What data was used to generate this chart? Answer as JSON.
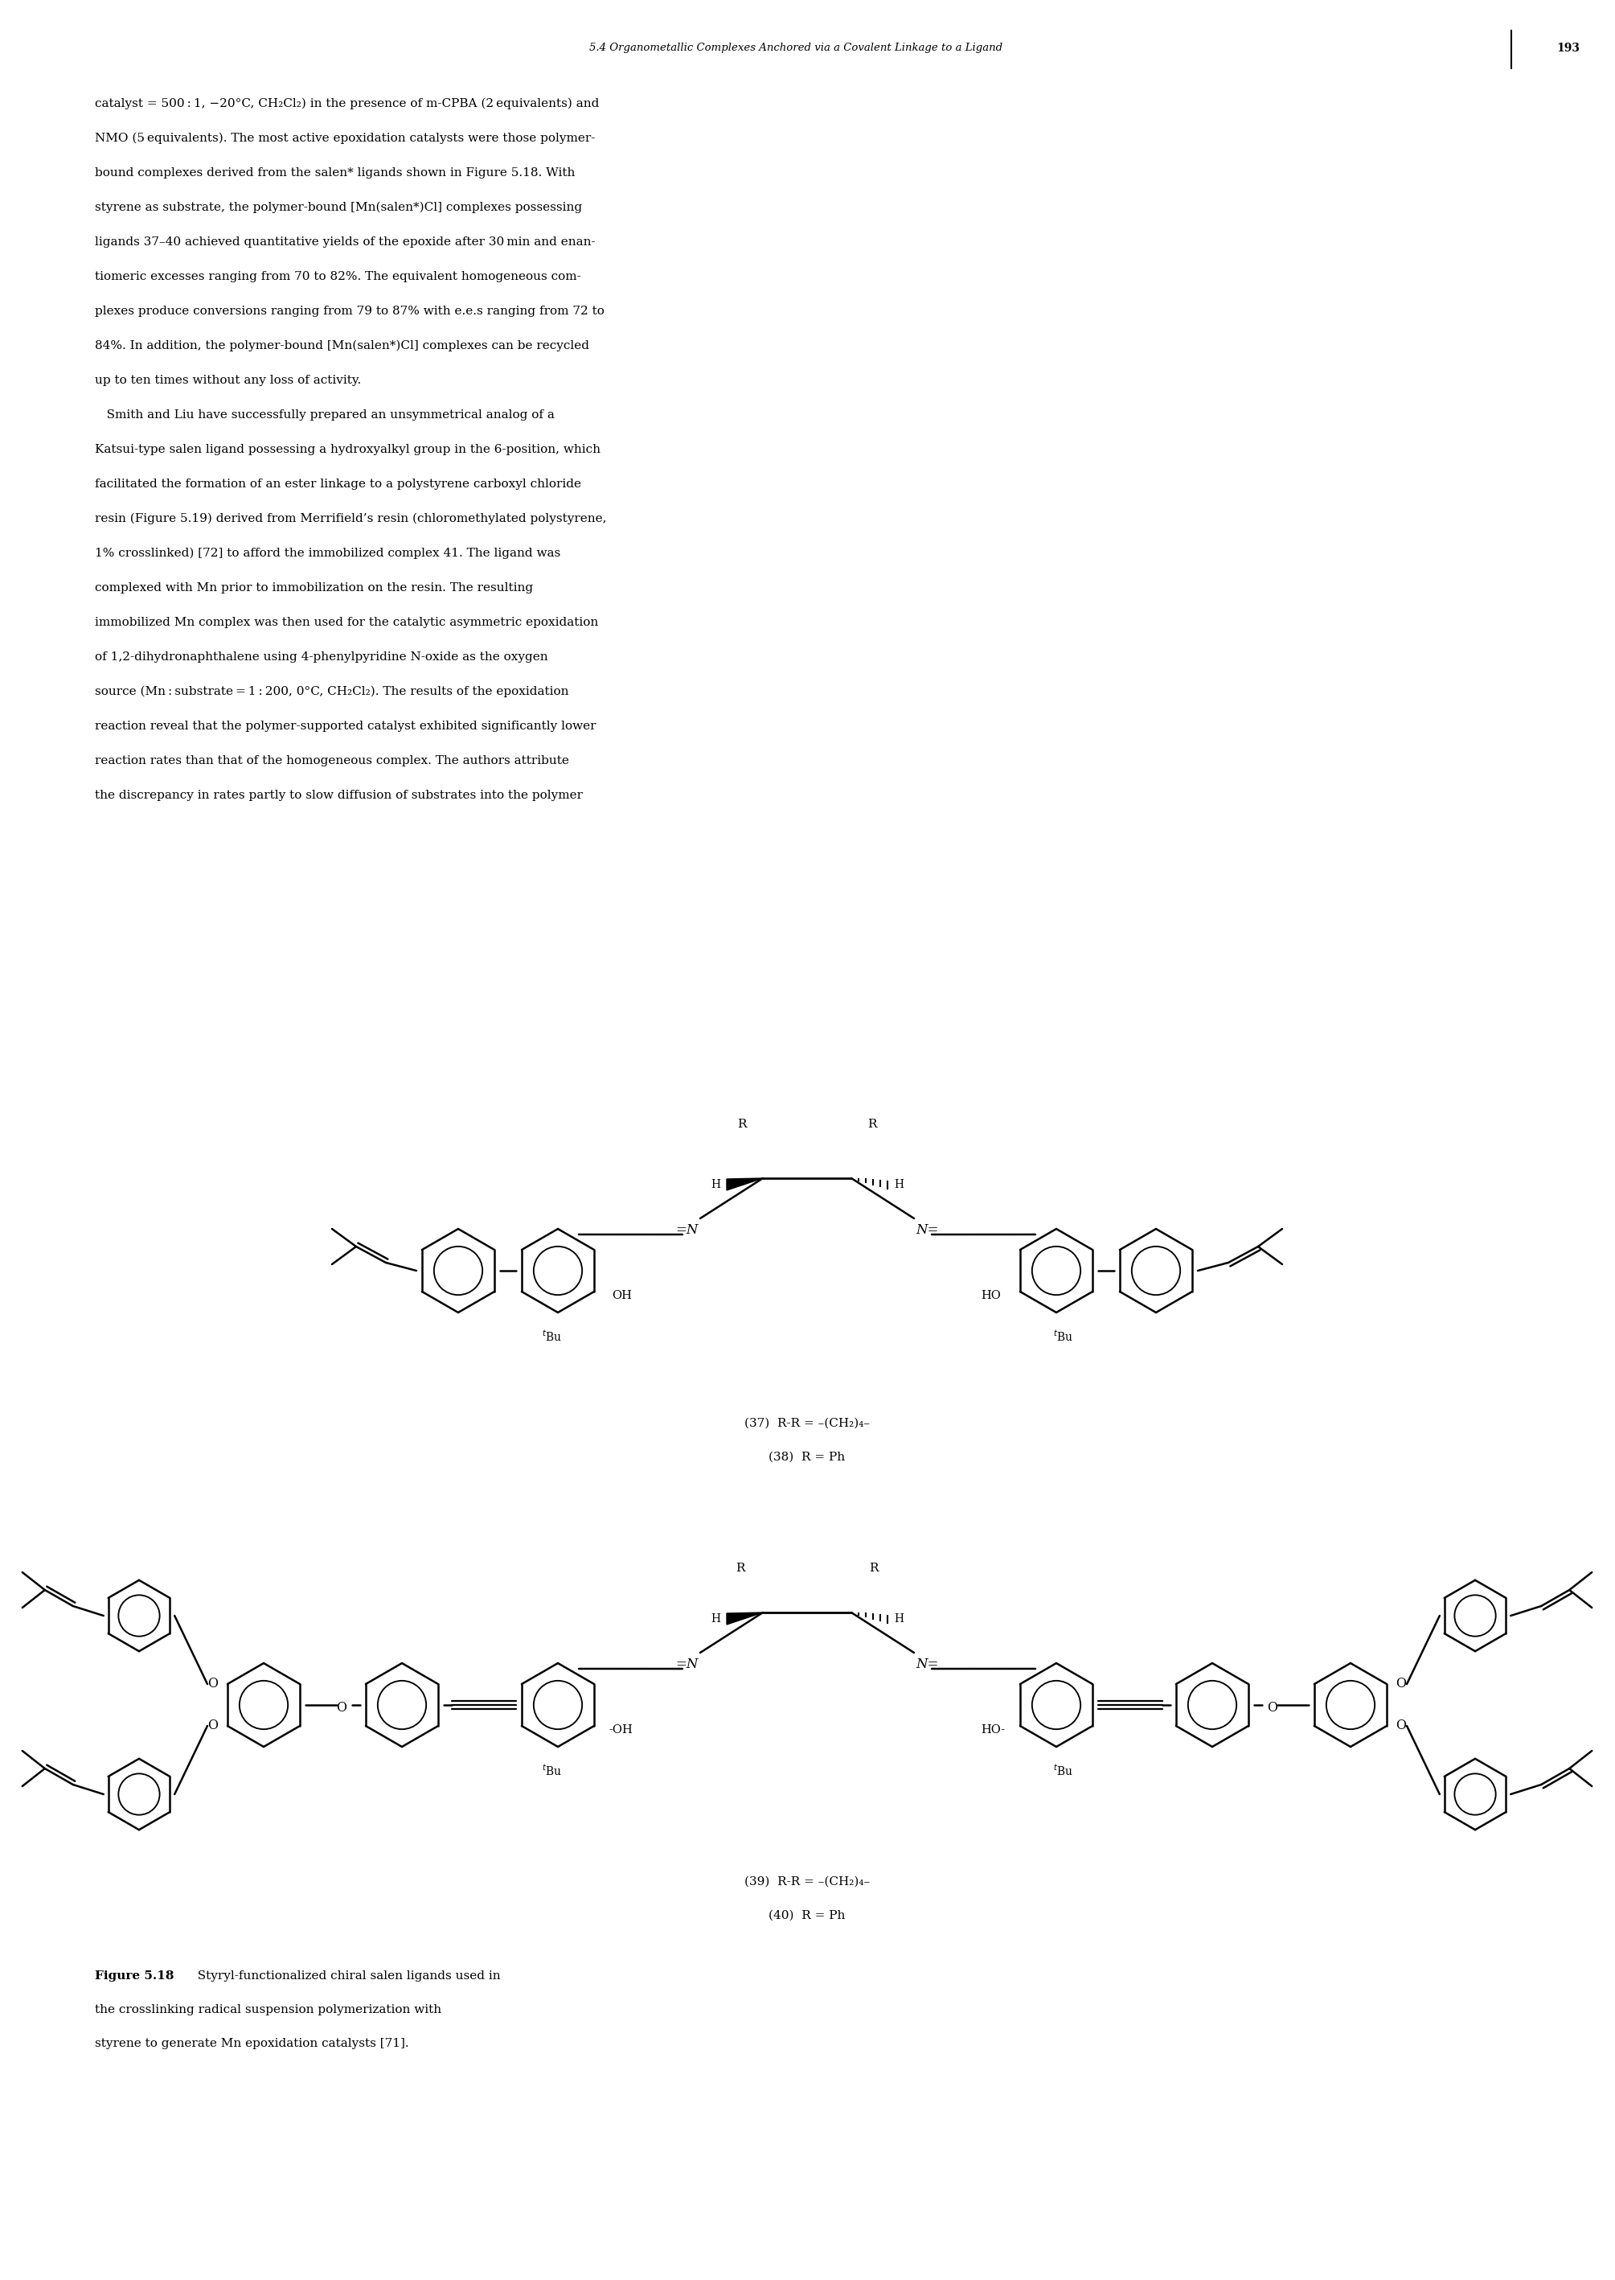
{
  "page_header": "5.4 Organometallic Complexes Anchored via a Covalent Linkage to a Ligand",
  "page_number": "193",
  "body_text_line1": "catalyst = 500 : 1, −20°C, CH",
  "body_text_line1b": "2",
  "body_text_line1c": "Cl",
  "body_text_line1d": "2",
  "body_text_line1e": ") in the presence of ",
  "body_lines": [
    "catalyst = 500 : 1, −20°C, CH₂Cl₂) in the presence of m-CPBA (2 equivalents) and",
    "NMO (5 equivalents). The most active epoxidation catalysts were those polymer-",
    "bound complexes derived from the salen* ligands shown in Figure 5.18. With",
    "styrene as substrate, the polymer-bound [Mn(salen*)Cl] complexes possessing",
    "ligands 37–40 achieved quantitative yields of the epoxide after 30 min and enan-",
    "tiomeric excesses ranging from 70 to 82%. The equivalent homogeneous com-",
    "plexes produce conversions ranging from 79 to 87% with e.e.s ranging from 72 to",
    "84%. In addition, the polymer-bound [Mn(salen*)Cl] complexes can be recycled",
    "up to ten times without any loss of activity.",
    "   Smith and Liu have successfully prepared an unsymmetrical analog of a",
    "Katsui-type salen ligand possessing a hydroxyalkyl group in the 6-position, which",
    "facilitated the formation of an ester linkage to a polystyrene carboxyl chloride",
    "resin (Figure 5.19) derived from Merrifield’s resin (chloromethylated polystyrene,",
    "1% crosslinked) [72] to afford the immobilized complex 41. The ligand was",
    "complexed with Mn prior to immobilization on the resin. The resulting",
    "immobilized Mn complex was then used for the catalytic asymmetric epoxidation",
    "of 1,2-dihydronaphthalene using 4-phenylpyridine N-oxide as the oxygen",
    "source (Mn : substrate = 1 : 200, 0°C, CH₂Cl₂). The results of the epoxidation",
    "reaction reveal that the polymer-supported catalyst exhibited significantly lower",
    "reaction rates than that of the homogeneous complex. The authors attribute",
    "the discrepancy in rates partly to slow diffusion of substrates into the polymer"
  ],
  "caption_bold": "Figure 5.18",
  "caption_rest": "  Styryl-functionalized chiral salen ligands used in",
  "caption_line2": "the crosslinking radical suspension polymerization with",
  "caption_line3": "styrene to generate Mn epoxidation catalysts [71].",
  "label_37": "(37)  R-R = -(CH",
  "label_37b": "2",
  "label_37c": ")",
  "label_37d": "4",
  "label_37e": "-",
  "label_38": "(38)  R = Ph",
  "label_39": "(39)  R-R = -(CH",
  "label_39b": "2",
  "label_39c": ")",
  "label_39d": "4",
  "label_39e": "-",
  "label_40": "(40)  R = Ph",
  "bg_color": "#ffffff",
  "text_color": "#000000"
}
